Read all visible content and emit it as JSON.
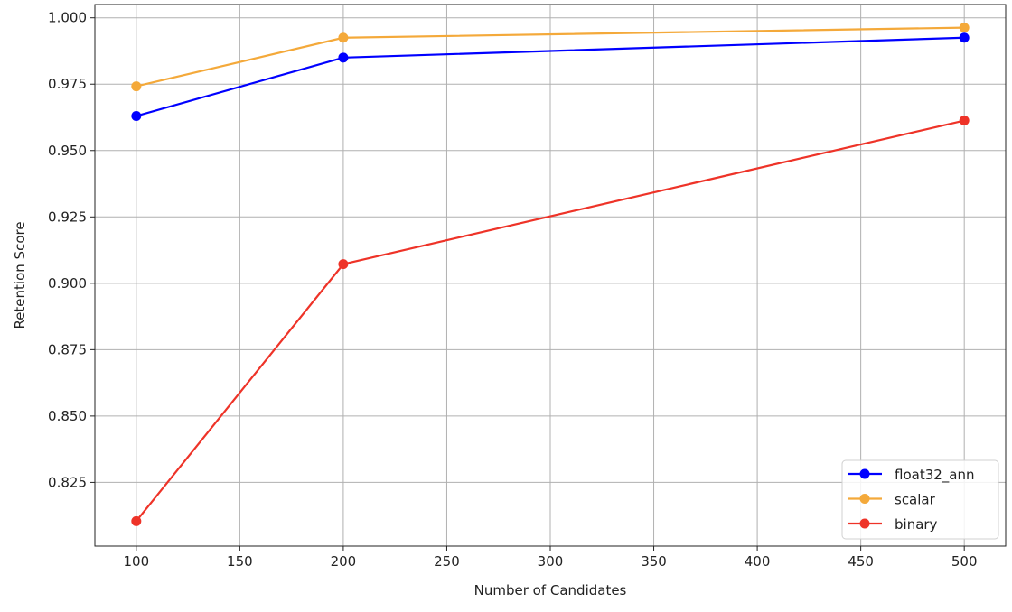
{
  "chart_data": {
    "type": "line",
    "title": "",
    "xlabel": "Number of Candidates",
    "ylabel": "Retention Score",
    "xlim": [
      80,
      520
    ],
    "ylim": [
      0.801,
      1.005
    ],
    "xticks": [
      100,
      150,
      200,
      250,
      300,
      350,
      400,
      450,
      500
    ],
    "yticks": [
      0.825,
      0.85,
      0.875,
      0.9,
      0.925,
      0.95,
      0.975,
      1.0
    ],
    "ytick_labels": [
      "0.825",
      "0.850",
      "0.875",
      "0.900",
      "0.925",
      "0.950",
      "0.975",
      "1.000"
    ],
    "grid": true,
    "legend_position": "lower-right",
    "x": [
      100,
      200,
      500
    ],
    "series": [
      {
        "name": "float32_ann",
        "color": "#0000ff",
        "values": [
          0.963,
          0.985,
          0.9925
        ]
      },
      {
        "name": "scalar",
        "color": "#f4a93a",
        "values": [
          0.9742,
          0.9925,
          0.9963
        ]
      },
      {
        "name": "binary",
        "color": "#ee3328",
        "values": [
          0.8104,
          0.9072,
          0.9613
        ]
      }
    ]
  }
}
